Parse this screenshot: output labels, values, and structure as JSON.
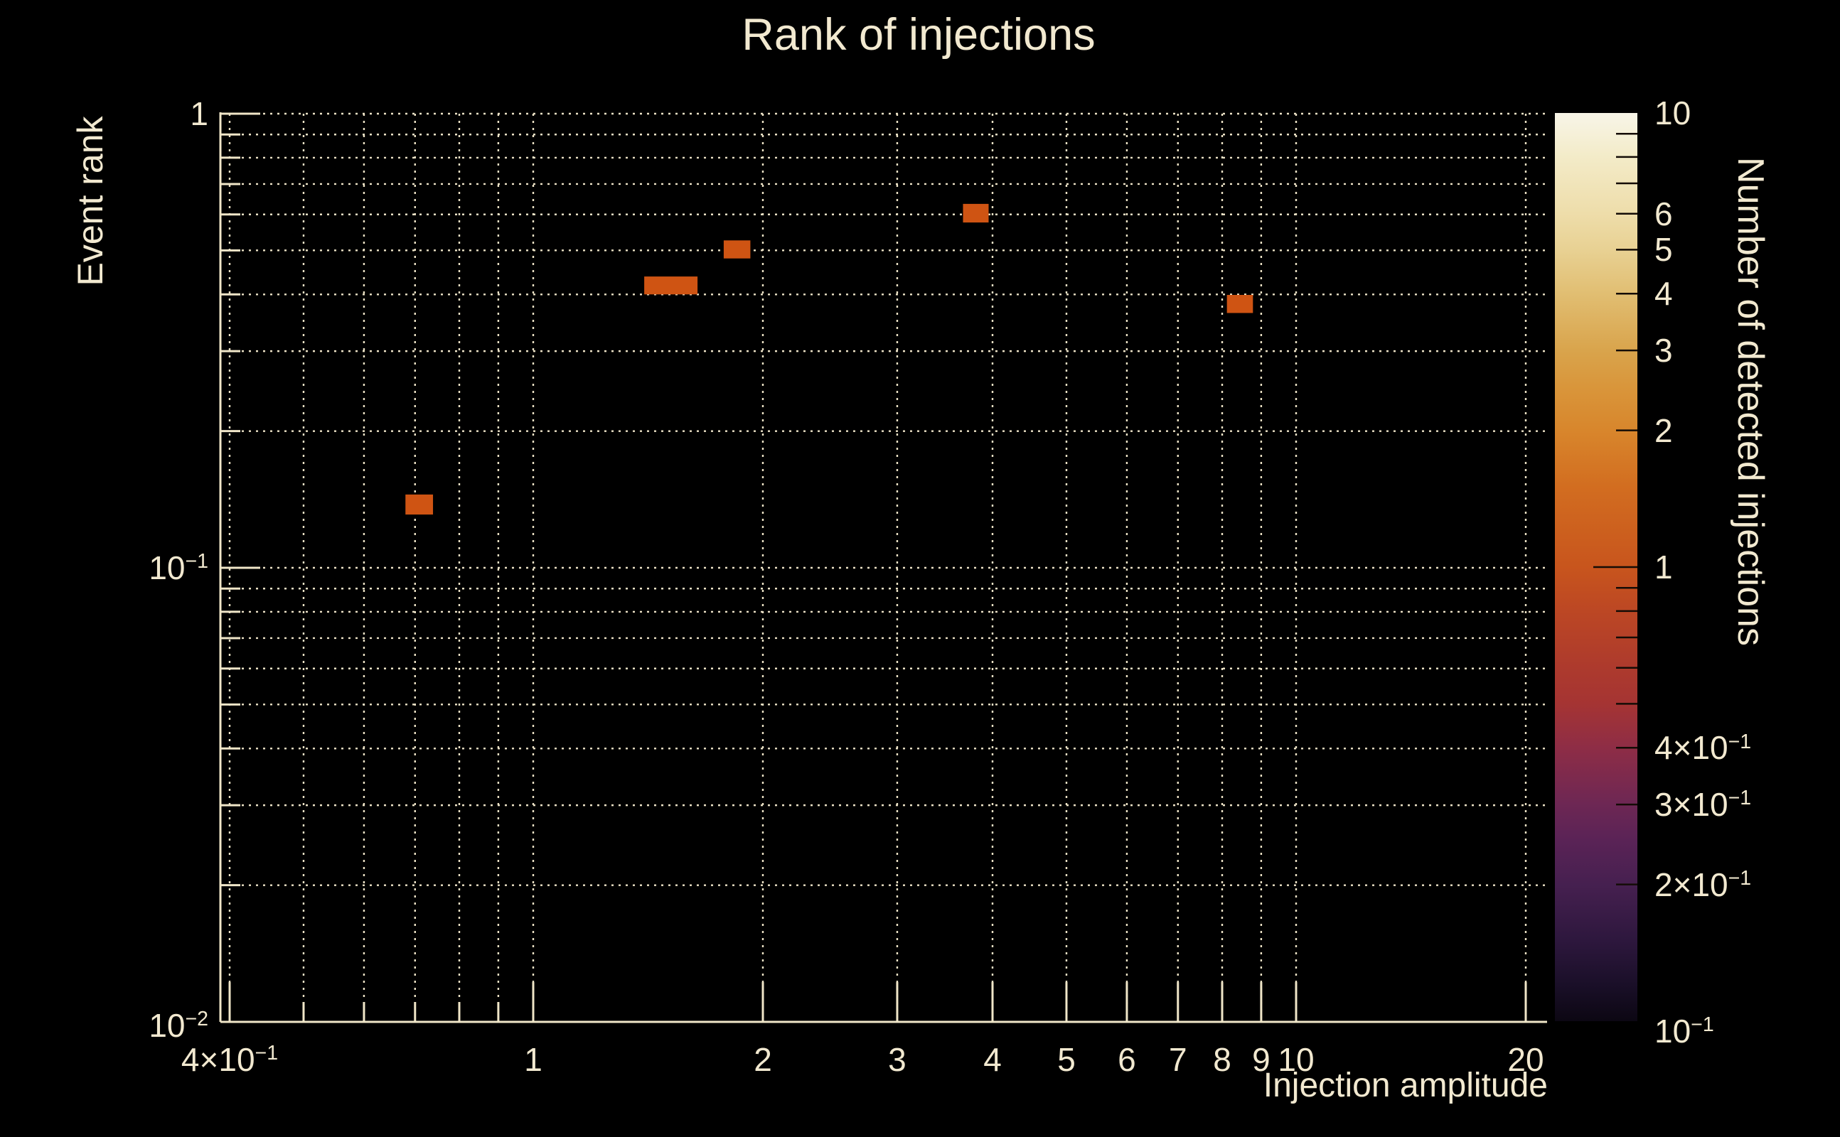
{
  "figure": {
    "title": "Rank of injections",
    "background": "#000000",
    "text_color": "#f2e9d0",
    "grid_color": "#ece2c6",
    "axis_color": "#f0e6c8"
  },
  "chart_data": {
    "type": "heatmap",
    "title": "Rank of injections",
    "xlabel": "Injection amplitude",
    "ylabel": "Event rank",
    "colorbar_label": "Number of detected injections",
    "xscale": "log",
    "yscale": "log",
    "cscale": "log",
    "xlim": [
      0.389,
      21.33
    ],
    "ylim": [
      0.01,
      1
    ],
    "clim": [
      0.1,
      10
    ],
    "grid": "dotted",
    "legend_position": "right-colorbar",
    "x_ticks": [
      {
        "v": 0.4,
        "label": "4×10",
        "sup": "−1"
      },
      {
        "v": 1,
        "label": "1",
        "sup": ""
      },
      {
        "v": 2,
        "label": "2",
        "sup": ""
      },
      {
        "v": 3,
        "label": "3",
        "sup": ""
      },
      {
        "v": 4,
        "label": "4",
        "sup": ""
      },
      {
        "v": 5,
        "label": "5",
        "sup": ""
      },
      {
        "v": 6,
        "label": "6",
        "sup": ""
      },
      {
        "v": 7,
        "label": "7",
        "sup": ""
      },
      {
        "v": 8,
        "label": "8",
        "sup": ""
      },
      {
        "v": 9,
        "label": "9",
        "sup": ""
      },
      {
        "v": 10,
        "label": "10",
        "sup": ""
      },
      {
        "v": 20,
        "label": "20",
        "sup": ""
      }
    ],
    "x_minor_ticks": [
      0.5,
      0.6,
      0.7,
      0.8,
      0.9
    ],
    "y_ticks": [
      {
        "v": 1,
        "label": "1",
        "sup": ""
      },
      {
        "v": 0.1,
        "label": "10",
        "sup": "−1"
      },
      {
        "v": 0.01,
        "label": "10",
        "sup": "−2"
      }
    ],
    "y_minor_ticks": [
      0.9,
      0.8,
      0.7,
      0.6,
      0.5,
      0.4,
      0.3,
      0.2,
      0.09,
      0.08,
      0.07,
      0.06,
      0.05,
      0.04,
      0.03,
      0.02
    ],
    "colorbar_ticks": [
      {
        "v": 10,
        "label": "10",
        "sup": ""
      },
      {
        "v": 6,
        "label": "6",
        "sup": ""
      },
      {
        "v": 5,
        "label": "5",
        "sup": ""
      },
      {
        "v": 4,
        "label": "4",
        "sup": ""
      },
      {
        "v": 3,
        "label": "3",
        "sup": ""
      },
      {
        "v": 2,
        "label": "2",
        "sup": ""
      },
      {
        "v": 1,
        "label": "1",
        "sup": ""
      },
      {
        "v": 0.4,
        "label": "4×10",
        "sup": "−1"
      },
      {
        "v": 0.3,
        "label": "3×10",
        "sup": "−1"
      },
      {
        "v": 0.2,
        "label": "2×10",
        "sup": "−1"
      },
      {
        "v": 0.1,
        "label": "10",
        "sup": "−1"
      }
    ],
    "colorbar_minor_ticks": [
      9,
      8,
      7,
      6,
      5,
      4,
      3,
      2,
      1,
      0.9,
      0.8,
      0.7,
      0.6,
      0.5,
      0.4,
      0.3,
      0.2
    ],
    "colormap_stops": [
      {
        "v": 10,
        "color": "#f8f5e8"
      },
      {
        "v": 8,
        "color": "#f3ebc8"
      },
      {
        "v": 6,
        "color": "#eeddaa"
      },
      {
        "v": 5,
        "color": "#e8d193"
      },
      {
        "v": 4,
        "color": "#e1be72"
      },
      {
        "v": 3,
        "color": "#d9a44c"
      },
      {
        "v": 2.5,
        "color": "#d9963b"
      },
      {
        "v": 2,
        "color": "#d8862c"
      },
      {
        "v": 1.5,
        "color": "#d26d20"
      },
      {
        "v": 1,
        "color": "#c8551d"
      },
      {
        "v": 0.8,
        "color": "#bc4724"
      },
      {
        "v": 0.6,
        "color": "#ad3a2d"
      },
      {
        "v": 0.5,
        "color": "#a53433"
      },
      {
        "v": 0.4,
        "color": "#8e2d46"
      },
      {
        "v": 0.3,
        "color": "#6d2754"
      },
      {
        "v": 0.25,
        "color": "#5a2356"
      },
      {
        "v": 0.2,
        "color": "#462050"
      },
      {
        "v": 0.15,
        "color": "#2d173d"
      },
      {
        "v": 0.12,
        "color": "#1a0f28"
      },
      {
        "v": 0.1,
        "color": "#0c0713"
      }
    ],
    "cell_value_color": "#cf5413",
    "cells": [
      {
        "amplitude_range": [
          0.68,
          0.739
        ],
        "rank_range": [
          0.131,
          0.145
        ],
        "detected_injections": 1
      },
      {
        "amplitude_range": [
          1.398,
          1.642
        ],
        "rank_range": [
          0.4,
          0.438
        ],
        "detected_injections": 1
      },
      {
        "amplitude_range": [
          1.777,
          1.926
        ],
        "rank_range": [
          0.48,
          0.526
        ],
        "detected_injections": 1
      },
      {
        "amplitude_range": [
          3.659,
          3.953
        ],
        "rank_range": [
          0.576,
          0.633
        ],
        "detected_injections": 1
      },
      {
        "amplitude_range": [
          8.115,
          8.779
        ],
        "rank_range": [
          0.364,
          0.399
        ],
        "detected_injections": 1
      }
    ]
  }
}
